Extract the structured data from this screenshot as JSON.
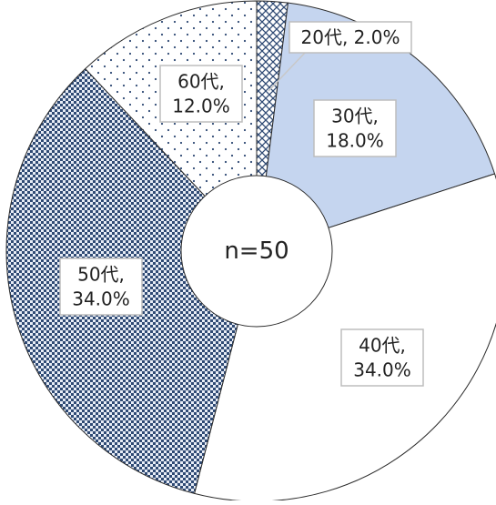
{
  "chart_data": {
    "type": "pie",
    "style": "donut",
    "center_label": "n=50",
    "slices": [
      {
        "category": "20代",
        "value": 2.0,
        "label_lines": [
          "20代, 2.0%"
        ],
        "fill": "cross-hatch",
        "color": "#2f4a74"
      },
      {
        "category": "30代",
        "value": 18.0,
        "label_lines": [
          "30代,",
          "18.0%"
        ],
        "fill": "solid",
        "color": "#c5d5ef"
      },
      {
        "category": "40代",
        "value": 34.0,
        "label_lines": [
          "40代,",
          "34.0%"
        ],
        "fill": "solid",
        "color": "#ffffff"
      },
      {
        "category": "50代",
        "value": 34.0,
        "label_lines": [
          "50代,",
          "34.0%"
        ],
        "fill": "dense-dots",
        "color": "#2f4a74"
      },
      {
        "category": "60代",
        "value": 12.0,
        "label_lines": [
          "60代,",
          "12.0%"
        ],
        "fill": "sparse-dots",
        "color": "#2f4a74"
      }
    ]
  }
}
